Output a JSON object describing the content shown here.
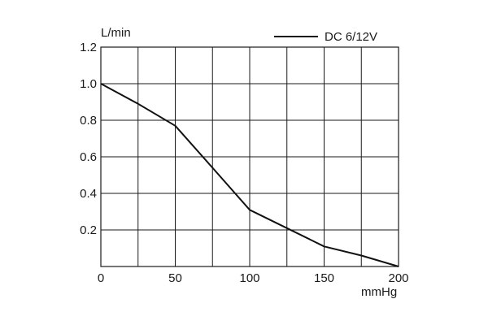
{
  "chart_data": {
    "type": "line",
    "title": "",
    "xlabel": "mmHg",
    "ylabel": "L/min",
    "xlim": [
      0,
      200
    ],
    "ylim": [
      0,
      1.2
    ],
    "x_ticks": [
      0,
      50,
      100,
      150,
      200
    ],
    "x_tick_labels": [
      "0",
      "50",
      "100",
      "150",
      "200"
    ],
    "y_ticks": [
      0.2,
      0.4,
      0.6,
      0.8,
      1.0,
      1.2
    ],
    "y_tick_labels": [
      "0.2",
      "0.4",
      "0.6",
      "0.8",
      "1.0",
      "1.2"
    ],
    "grid": true,
    "legend_position": "top-right",
    "series": [
      {
        "name": "DC 6/12V",
        "color": "#111111",
        "x": [
          0,
          25,
          50,
          75,
          100,
          125,
          150,
          175,
          200
        ],
        "y": [
          1.0,
          0.89,
          0.77,
          0.54,
          0.31,
          0.21,
          0.11,
          0.06,
          0.0
        ]
      }
    ]
  }
}
